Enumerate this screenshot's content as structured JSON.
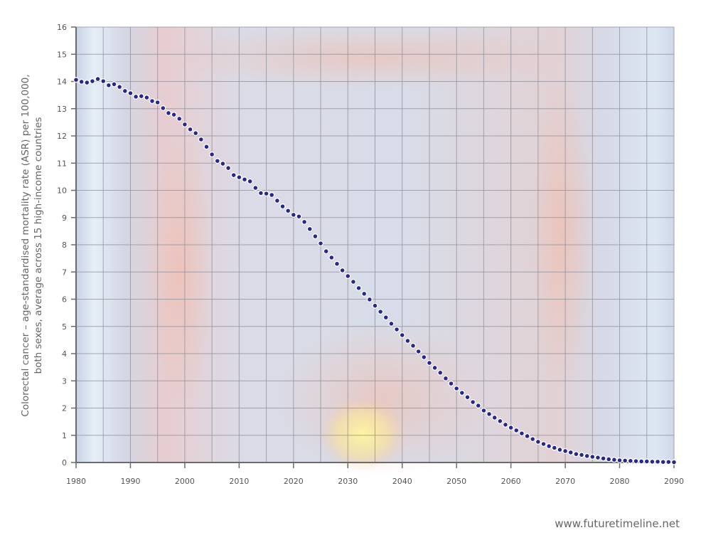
{
  "chart_data": {
    "type": "scatter",
    "title": "",
    "xlabel": "",
    "ylabel": "Colorectal cancer – age-standardised mortality rate (ASR) per 100,000, both sexes, average across 15 high-income countries",
    "ylabel_lines": [
      "Colorectal cancer – age-standardised mortality rate (ASR) per 100,000,",
      "both sexes, average across 15 high-income countries"
    ],
    "xlim": [
      1980,
      2090
    ],
    "ylim": [
      0,
      16
    ],
    "x_ticks": [
      1980,
      1990,
      2000,
      2010,
      2020,
      2030,
      2040,
      2050,
      2060,
      2070,
      2080,
      2090
    ],
    "y_ticks": [
      0,
      1,
      2,
      3,
      4,
      5,
      6,
      7,
      8,
      9,
      10,
      11,
      12,
      13,
      14,
      15,
      16
    ],
    "grid": {
      "x_every": 5,
      "y_every": 1,
      "on": true
    },
    "legend": null,
    "marker_color": "#27288f",
    "marker_edge": "#ffffff",
    "series": [
      {
        "name": "Colorectal cancer ASR",
        "x": [
          1980,
          1981,
          1982,
          1983,
          1984,
          1985,
          1986,
          1987,
          1988,
          1989,
          1990,
          1991,
          1992,
          1993,
          1994,
          1995,
          1996,
          1997,
          1998,
          1999,
          2000,
          2001,
          2002,
          2003,
          2004,
          2005,
          2006,
          2007,
          2008,
          2009,
          2010,
          2011,
          2012,
          2013,
          2014,
          2015,
          2016,
          2017,
          2018,
          2019,
          2020,
          2021,
          2022,
          2023,
          2024,
          2025,
          2026,
          2027,
          2028,
          2029,
          2030,
          2031,
          2032,
          2033,
          2034,
          2035,
          2036,
          2037,
          2038,
          2039,
          2040,
          2041,
          2042,
          2043,
          2044,
          2045,
          2046,
          2047,
          2048,
          2049,
          2050,
          2051,
          2052,
          2053,
          2054,
          2055,
          2056,
          2057,
          2058,
          2059,
          2060,
          2061,
          2062,
          2063,
          2064,
          2065,
          2066,
          2067,
          2068,
          2069,
          2070,
          2071,
          2072,
          2073,
          2074,
          2075,
          2076,
          2077,
          2078,
          2079,
          2080,
          2081,
          2082,
          2083,
          2084,
          2085,
          2086,
          2087,
          2088,
          2089,
          2090
        ],
        "values": [
          14.06,
          13.99,
          13.96,
          14.01,
          14.09,
          14.01,
          13.86,
          13.9,
          13.8,
          13.65,
          13.57,
          13.44,
          13.46,
          13.41,
          13.28,
          13.23,
          13.02,
          12.84,
          12.78,
          12.63,
          12.42,
          12.24,
          12.1,
          11.87,
          11.6,
          11.32,
          11.08,
          10.98,
          10.82,
          10.56,
          10.48,
          10.4,
          10.33,
          10.09,
          9.9,
          9.88,
          9.83,
          9.62,
          9.41,
          9.25,
          9.1,
          9.04,
          8.84,
          8.58,
          8.31,
          8.05,
          7.76,
          7.53,
          7.3,
          7.06,
          6.85,
          6.64,
          6.41,
          6.2,
          5.99,
          5.76,
          5.54,
          5.33,
          5.1,
          4.89,
          4.68,
          4.47,
          4.29,
          4.08,
          3.87,
          3.66,
          3.48,
          3.3,
          3.09,
          2.9,
          2.72,
          2.56,
          2.4,
          2.22,
          2.09,
          1.91,
          1.78,
          1.65,
          1.52,
          1.39,
          1.28,
          1.18,
          1.07,
          0.97,
          0.86,
          0.76,
          0.68,
          0.6,
          0.54,
          0.47,
          0.42,
          0.37,
          0.31,
          0.28,
          0.24,
          0.21,
          0.18,
          0.15,
          0.12,
          0.1,
          0.08,
          0.07,
          0.06,
          0.05,
          0.04,
          0.04,
          0.03,
          0.03,
          0.02,
          0.02,
          0.01
        ]
      }
    ]
  },
  "footer": {
    "source": "www.futuretimeline.net"
  }
}
